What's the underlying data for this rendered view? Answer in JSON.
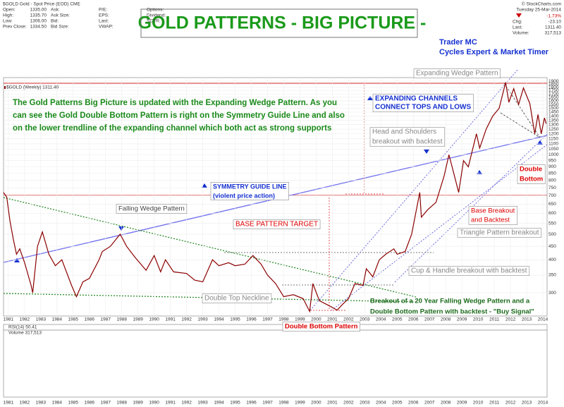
{
  "header": {
    "symbol": "$GOLD Gold - Spot Price (EOD) CME",
    "credit": "© StockCharts.com",
    "quote": [
      [
        "Open:",
        "1335.00"
      ],
      [
        "High:",
        "1335.70"
      ],
      [
        "Low:",
        "1306.00"
      ],
      [
        "Prev Close:",
        "1334.50"
      ],
      [
        "Ask:",
        ""
      ],
      [
        "Ask Size:",
        ""
      ],
      [
        "Bid:",
        ""
      ],
      [
        "Bid Size:",
        ""
      ],
      [
        "P/E:",
        ""
      ],
      [
        "EPS:",
        ""
      ],
      [
        "Last:",
        ""
      ],
      [
        "VWAP:",
        ""
      ],
      [
        "Options:",
        ""
      ],
      [
        "Dividend:",
        ""
      ],
      [
        "SCTR:",
        ""
      ]
    ],
    "date": "Tuesday 25-Mar-2014",
    "change_pct": "-1.73%",
    "summary": [
      [
        "Chg:",
        "-23.10"
      ],
      [
        "Last:",
        "1311.40"
      ],
      [
        "Volume:",
        "317,513"
      ]
    ]
  },
  "chart_data": {
    "type": "line",
    "title": "GOLD PATTERNS - BIG PICTURE -",
    "legend_text": "$GOLD (Weekly) 1311.40",
    "rsi_label": "RSI(14) 50.41",
    "volume_label": "Volume 317,513",
    "log_scale": true,
    "color": "#8b0000",
    "x": [
      1980.7,
      1980.9,
      1981.1,
      1981.3,
      1981.5,
      1981.7,
      1982.0,
      1982.4,
      1982.5,
      1982.8,
      1983.1,
      1983.5,
      1983.9,
      1984.3,
      1984.9,
      1985.2,
      1985.6,
      1986.0,
      1986.6,
      1986.8,
      1987.3,
      1987.9,
      1988.3,
      1988.8,
      1989.5,
      1990.0,
      1990.4,
      1990.7,
      1991.2,
      1992.0,
      1992.5,
      1993.0,
      1993.6,
      1994.0,
      1994.6,
      1995.0,
      1995.6,
      1996.1,
      1996.6,
      1997.0,
      1997.5,
      1998.0,
      1998.6,
      1999.2,
      1999.6,
      1999.8,
      2000.2,
      2000.7,
      2001.3,
      2001.6,
      2002.0,
      2002.4,
      2002.9,
      2003.1,
      2003.5,
      2003.9,
      2004.3,
      2004.8,
      2005.0,
      2005.5,
      2005.9,
      2006.4,
      2006.5,
      2006.9,
      2007.4,
      2007.9,
      2008.2,
      2008.5,
      2008.8,
      2009.1,
      2009.4,
      2009.9,
      2010.1,
      2010.5,
      2010.9,
      2011.3,
      2011.7,
      2011.9,
      2012.2,
      2012.5,
      2012.8,
      2013.2,
      2013.5,
      2013.7,
      2013.9,
      2014.1,
      2014.2
    ],
    "values": [
      720,
      690,
      560,
      480,
      420,
      440,
      390,
      320,
      300,
      450,
      510,
      420,
      380,
      400,
      320,
      290,
      330,
      340,
      400,
      430,
      450,
      500,
      450,
      410,
      365,
      415,
      360,
      400,
      360,
      355,
      335,
      330,
      400,
      380,
      390,
      380,
      385,
      415,
      385,
      350,
      325,
      290,
      295,
      285,
      255,
      325,
      280,
      270,
      258,
      270,
      285,
      325,
      320,
      370,
      345,
      400,
      420,
      440,
      420,
      430,
      500,
      720,
      580,
      620,
      660,
      830,
      1000,
      850,
      720,
      950,
      900,
      1200,
      1060,
      1250,
      1400,
      1500,
      1880,
      1580,
      1780,
      1550,
      1790,
      1560,
      1200,
      1420,
      1200,
      1380,
      1311.4
    ],
    "xlim": [
      1980.7,
      2014.26
    ],
    "ylim": [
      245,
      1960
    ],
    "xticks": [
      1981,
      1982,
      1983,
      1984,
      1985,
      1986,
      1987,
      1988,
      1989,
      1990,
      1991,
      1992,
      1993,
      1994,
      1995,
      1996,
      1997,
      1998,
      1999,
      2000,
      2001,
      2002,
      2003,
      2004,
      2005,
      2006,
      2007,
      2008,
      2009,
      2010,
      2011,
      2012,
      2013,
      2014
    ],
    "yticks": [
      300,
      350,
      400,
      450,
      500,
      550,
      600,
      650,
      700,
      750,
      800,
      850,
      900,
      950,
      1000,
      1050,
      1100,
      1150,
      1200,
      1250,
      1300,
      1350,
      1400,
      1450,
      1500,
      1550,
      1600,
      1650,
      1700,
      1750,
      1800,
      1850,
      1900
    ],
    "annotations": [
      {
        "lines": [
          "Trader MC",
          "Cycles Expert & Market Timer"
        ]
      },
      {
        "lines": [
          "The Gold Patterns Big Picture is updated with the Expanding Wedge Pattern. As you",
          "can see the Gold Double Bottom Pattern is right on the Symmetry Guide Line and also",
          "on the lower trendline of the expanding channel which both act as strong supports"
        ]
      },
      {
        "lines": [
          "EXPANDING CHANNELS",
          "CONNECT TOPS AND LOWS"
        ]
      },
      {
        "lines": [
          "Expanding Wedge Pattern"
        ]
      },
      {
        "lines": [
          "Head and Shoulders",
          "breakout with backtest"
        ]
      },
      {
        "lines": [
          "SYMMETRY GUIDE LINE",
          "(violent price action)"
        ]
      },
      {
        "lines": [
          "Double",
          "Bottom"
        ]
      },
      {
        "lines": [
          "Falling Wedge Pattern"
        ]
      },
      {
        "lines": [
          "BASE PATTERN TARGET"
        ]
      },
      {
        "lines": [
          "Base Breakout",
          "and Backtest"
        ]
      },
      {
        "lines": [
          "Triangle Pattern breakout"
        ]
      },
      {
        "lines": [
          "Cup & Handle breakout with backtest"
        ]
      },
      {
        "lines": [
          "Double Top Neckline"
        ]
      },
      {
        "lines": [
          "Breakout of a 20 Year Falling Wedge Pattern and a",
          "Double Bottom Pattern with backtest - \"Buy Signal\""
        ]
      },
      {
        "lines": [
          "Double Bottom Pattern"
        ]
      }
    ]
  }
}
